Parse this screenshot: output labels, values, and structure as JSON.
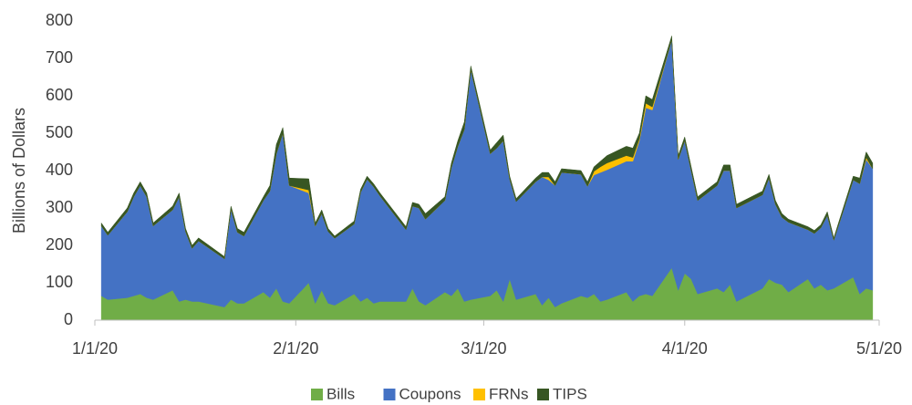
{
  "chart_data": {
    "type": "stacked_area",
    "y_label": "Billions of Dollars",
    "x": [
      "1/2/20",
      "1/3/20",
      "1/6/20",
      "1/7/20",
      "1/8/20",
      "1/9/20",
      "1/10/20",
      "1/13/20",
      "1/14/20",
      "1/15/20",
      "1/16/20",
      "1/17/20",
      "1/21/20",
      "1/22/20",
      "1/23/20",
      "1/24/20",
      "1/27/20",
      "1/28/20",
      "1/29/20",
      "1/30/20",
      "1/31/20",
      "2/3/20",
      "2/4/20",
      "2/5/20",
      "2/6/20",
      "2/7/20",
      "2/10/20",
      "2/11/20",
      "2/12/20",
      "2/13/20",
      "2/14/20",
      "2/18/20",
      "2/19/20",
      "2/20/20",
      "2/21/20",
      "2/24/20",
      "2/25/20",
      "2/26/20",
      "2/27/20",
      "2/28/20",
      "3/2/20",
      "3/3/20",
      "3/4/20",
      "3/5/20",
      "3/6/20",
      "3/9/20",
      "3/10/20",
      "3/11/20",
      "3/12/20",
      "3/13/20",
      "3/16/20",
      "3/17/20",
      "3/18/20",
      "3/19/20",
      "3/20/20",
      "3/23/20",
      "3/24/20",
      "3/25/20",
      "3/26/20",
      "3/27/20",
      "3/30/20",
      "3/31/20",
      "4/1/20",
      "4/2/20",
      "4/3/20",
      "4/6/20",
      "4/7/20",
      "4/8/20",
      "4/9/20",
      "4/13/20",
      "4/14/20",
      "4/15/20",
      "4/16/20",
      "4/17/20",
      "4/20/20",
      "4/21/20",
      "4/22/20",
      "4/23/20",
      "4/24/20",
      "4/27/20",
      "4/28/20",
      "4/29/20",
      "4/30/20"
    ],
    "series": [
      {
        "name": "Bills",
        "color": "#70ad47",
        "values": [
          65,
          55,
          60,
          65,
          70,
          60,
          55,
          80,
          50,
          55,
          50,
          50,
          35,
          55,
          45,
          45,
          75,
          60,
          85,
          50,
          45,
          100,
          45,
          80,
          45,
          40,
          70,
          50,
          60,
          45,
          50,
          50,
          85,
          50,
          40,
          75,
          65,
          85,
          50,
          55,
          65,
          80,
          50,
          110,
          55,
          70,
          40,
          60,
          35,
          45,
          65,
          60,
          70,
          50,
          55,
          75,
          50,
          65,
          70,
          65,
          140,
          80,
          125,
          110,
          70,
          85,
          75,
          95,
          50,
          85,
          110,
          100,
          95,
          75,
          110,
          85,
          95,
          80,
          85,
          115,
          70,
          85,
          80
        ]
      },
      {
        "name": "Coupons",
        "color": "#4472c4",
        "values": [
          187,
          172,
          230,
          265,
          290,
          270,
          197,
          215,
          280,
          182,
          142,
          162,
          129,
          242,
          190,
          180,
          245,
          285,
          360,
          450,
          315,
          240,
          207,
          205,
          192,
          179,
          187,
          292,
          317,
          312,
          282,
          192,
          220,
          250,
          230,
          245,
          343,
          380,
          460,
          615,
          380,
          380,
          430,
          267,
          262,
          300,
          343,
          315,
          325,
          350,
          325,
          298,
          318,
          345,
          347,
          350,
          375,
          415,
          498,
          497,
          610,
          350,
          355,
          290,
          250,
          275,
          325,
          305,
          250,
          250,
          270,
          210,
          180,
          187,
          132,
          147,
          152,
          200,
          129,
          260,
          295,
          345,
          325
        ]
      },
      {
        "name": "FRNs",
        "color": "#ffc000",
        "values": [
          0,
          0,
          0,
          0,
          0,
          0,
          0,
          0,
          0,
          0,
          0,
          0,
          0,
          0,
          0,
          0,
          0,
          0,
          0,
          0,
          0,
          8,
          0,
          0,
          0,
          0,
          0,
          0,
          0,
          0,
          0,
          0,
          0,
          0,
          0,
          0,
          0,
          0,
          0,
          0,
          0,
          0,
          0,
          0,
          0,
          0,
          0,
          8,
          0,
          0,
          0,
          0,
          10,
          15,
          18,
          15,
          10,
          5,
          12,
          8,
          0,
          0,
          0,
          0,
          0,
          0,
          0,
          0,
          0,
          0,
          0,
          0,
          0,
          0,
          0,
          0,
          0,
          0,
          0,
          0,
          0,
          5,
          0
        ]
      },
      {
        "name": "TIPS",
        "color": "#375623",
        "values": [
          8,
          8,
          10,
          10,
          10,
          10,
          8,
          10,
          10,
          8,
          8,
          8,
          6,
          8,
          10,
          10,
          10,
          15,
          25,
          15,
          20,
          30,
          8,
          10,
          8,
          6,
          8,
          8,
          8,
          8,
          8,
          8,
          10,
          10,
          15,
          10,
          12,
          15,
          20,
          10,
          10,
          15,
          15,
          8,
          8,
          10,
          12,
          12,
          10,
          10,
          10,
          12,
          12,
          15,
          20,
          25,
          25,
          15,
          20,
          20,
          10,
          10,
          10,
          10,
          10,
          10,
          15,
          15,
          10,
          10,
          10,
          10,
          10,
          8,
          8,
          8,
          8,
          10,
          6,
          10,
          15,
          15,
          15
        ]
      }
    ],
    "xlim": [
      "1/1/20",
      "5/1/20"
    ],
    "xticks": [
      "1/1/20",
      "2/1/20",
      "3/1/20",
      "4/1/20",
      "5/1/20"
    ],
    "ylim": [
      0,
      800
    ],
    "yticks": [
      0,
      100,
      200,
      300,
      400,
      500,
      600,
      700,
      800
    ],
    "grid": false,
    "legend": "bottom"
  }
}
